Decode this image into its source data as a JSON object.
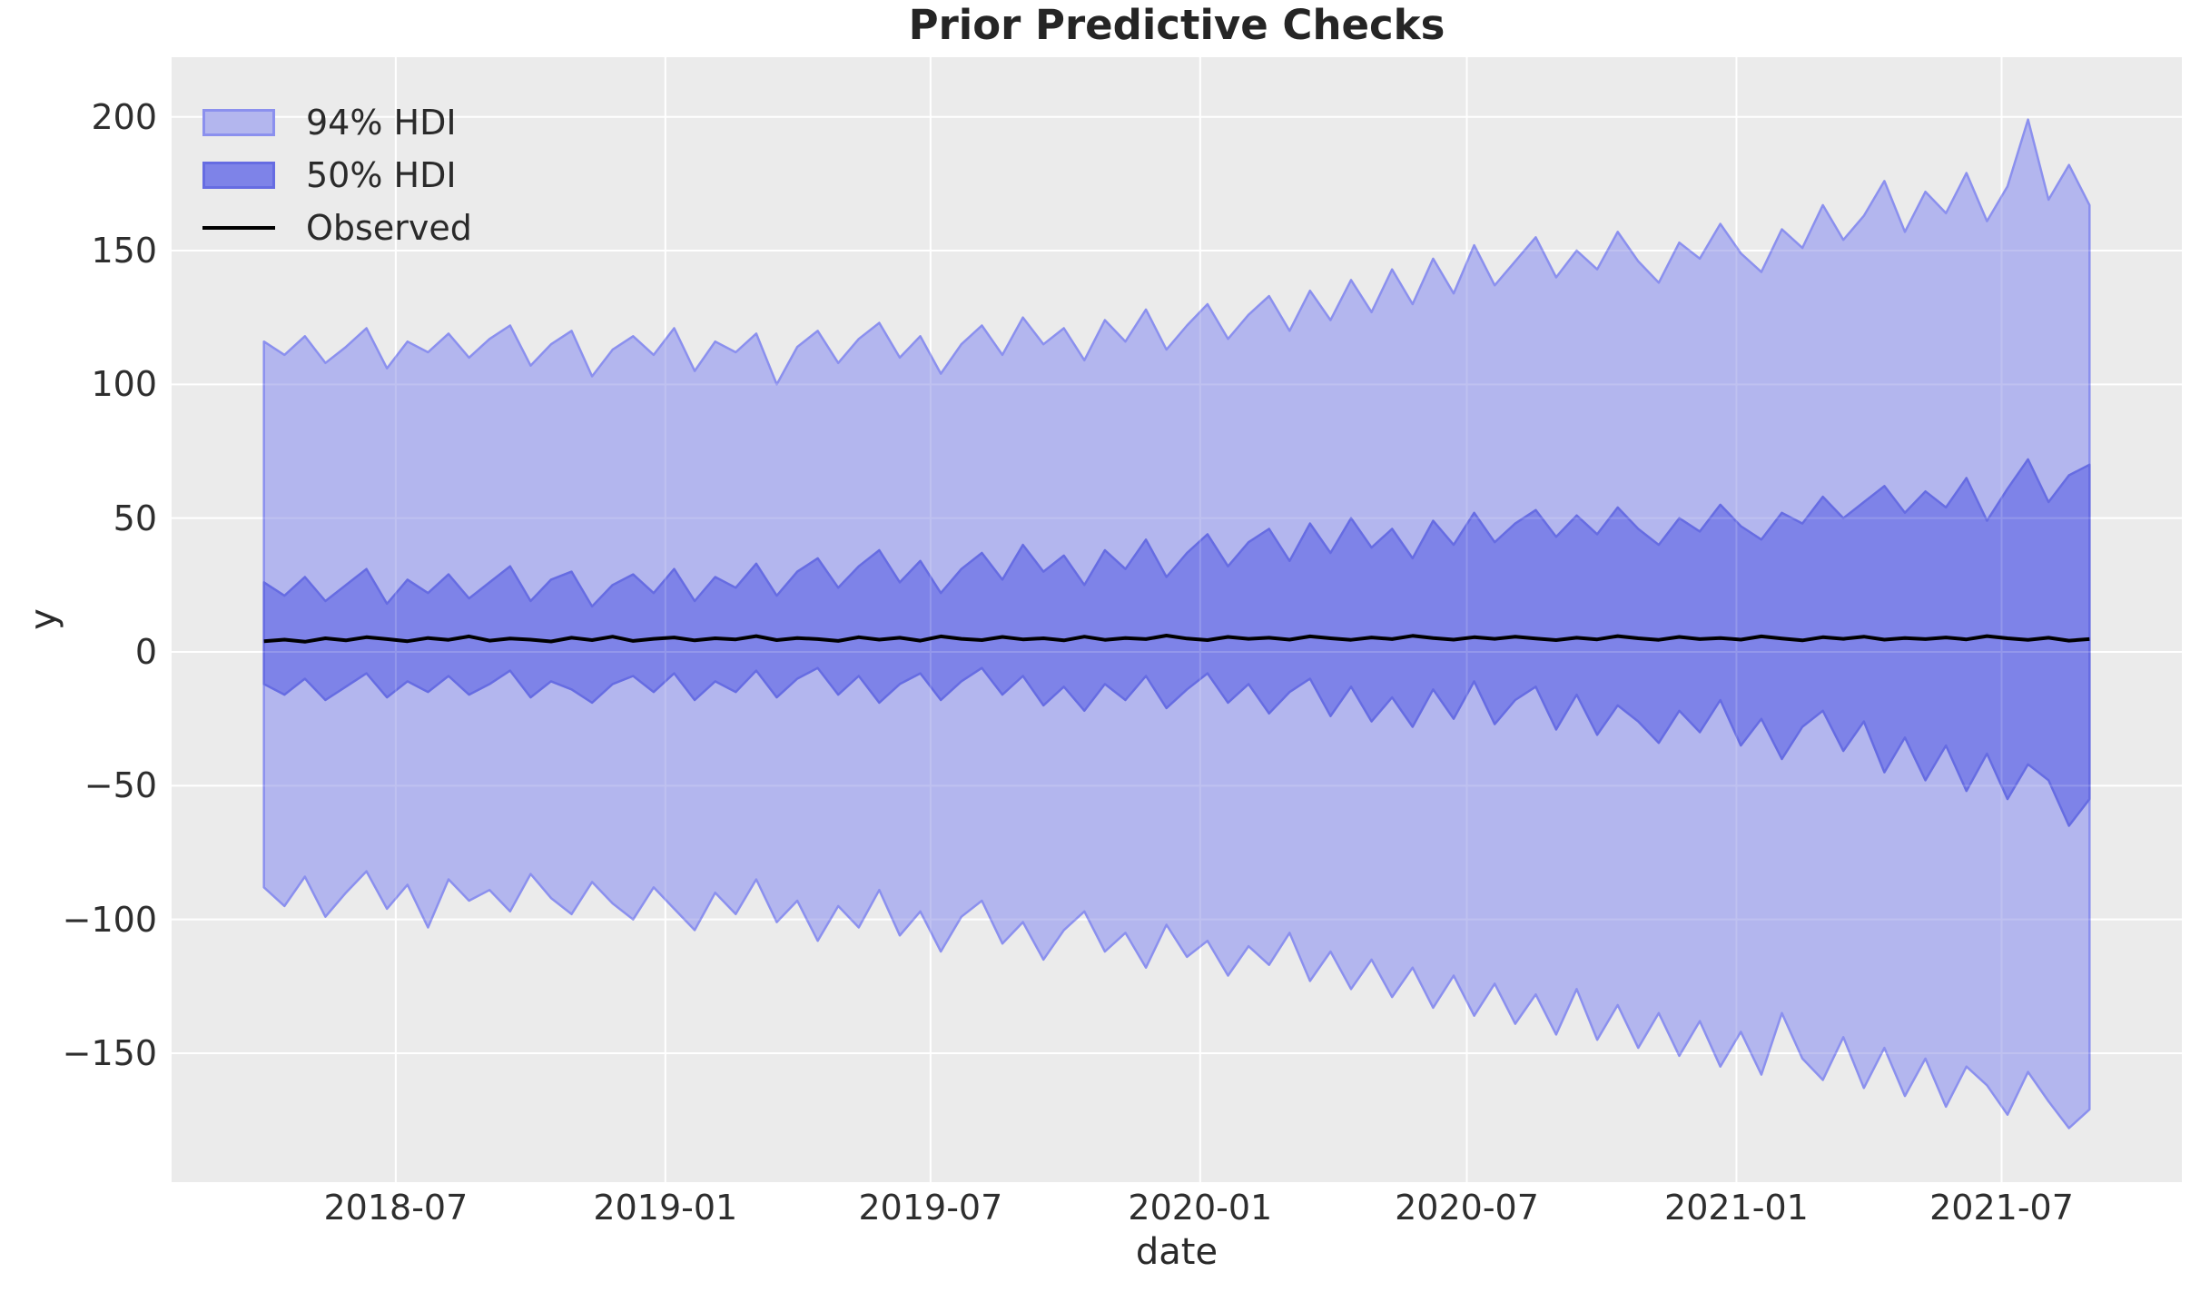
{
  "figure": {
    "title": "Prior Predictive Checks"
  },
  "legend": {
    "items": [
      {
        "label": "94% HDI",
        "type": "patch",
        "fill": "#b3b6ee",
        "edge": "#8b90ee"
      },
      {
        "label": "50% HDI",
        "type": "patch",
        "fill": "#7e83e8",
        "edge": "#666ce2"
      },
      {
        "label": "Observed",
        "type": "line",
        "color": "#000000"
      }
    ]
  },
  "colors": {
    "figure_bg": "#ffffff",
    "axes_bg": "#ebebeb",
    "grid": "#ffffff",
    "hdi94_fill": "#b3b6ee",
    "hdi94_edge": "#8b90ee",
    "hdi50_fill": "#7e83e8",
    "hdi50_edge": "#666ce2",
    "observed": "#000000",
    "text": "#2a2a2a"
  },
  "chart_data": {
    "type": "area",
    "title": "Prior Predictive Checks",
    "xlabel": "date",
    "ylabel": "y",
    "grid": true,
    "legend_position": "upper left",
    "x_start": "2018-04-02",
    "x_step_days": 14,
    "n_points": 90,
    "xlim": [
      "2018-01-29",
      "2021-11-01"
    ],
    "ylim": [
      -198.2,
      222.3
    ],
    "x_ticks": [
      {
        "date": "2018-07-01",
        "label": "2018-07"
      },
      {
        "date": "2019-01-01",
        "label": "2019-01"
      },
      {
        "date": "2019-07-01",
        "label": "2019-07"
      },
      {
        "date": "2020-01-01",
        "label": "2020-01"
      },
      {
        "date": "2020-07-01",
        "label": "2020-07"
      },
      {
        "date": "2021-01-01",
        "label": "2021-01"
      },
      {
        "date": "2021-07-01",
        "label": "2021-07"
      }
    ],
    "y_ticks": [
      {
        "value": 200,
        "label": "200"
      },
      {
        "value": 150,
        "label": "150"
      },
      {
        "value": 100,
        "label": "100"
      },
      {
        "value": 50,
        "label": "50"
      },
      {
        "value": 0,
        "label": "0"
      },
      {
        "value": -50,
        "label": "−50"
      },
      {
        "value": -100,
        "label": "−100"
      },
      {
        "value": -150,
        "label": "−150"
      }
    ],
    "series": [
      {
        "name": "94% HDI upper",
        "values": [
          116,
          111,
          118,
          108,
          114,
          121,
          106,
          116,
          112,
          119,
          110,
          117,
          122,
          107,
          115,
          120,
          103,
          113,
          118,
          111,
          121,
          105,
          116,
          112,
          119,
          100,
          114,
          120,
          108,
          117,
          123,
          110,
          118,
          104,
          115,
          122,
          111,
          125,
          115,
          121,
          109,
          124,
          116,
          128,
          113,
          122,
          130,
          117,
          126,
          133,
          120,
          135,
          124,
          139,
          127,
          143,
          130,
          147,
          134,
          152,
          137,
          146,
          155,
          140,
          150,
          143,
          157,
          146,
          138,
          153,
          147,
          160,
          149,
          142,
          158,
          151,
          167,
          154,
          163,
          176,
          157,
          172,
          164,
          179,
          161,
          174,
          199,
          169,
          182,
          167
        ]
      },
      {
        "name": "50% HDI upper",
        "values": [
          26,
          21,
          28,
          19,
          25,
          31,
          18,
          27,
          22,
          29,
          20,
          26,
          32,
          19,
          27,
          30,
          17,
          25,
          29,
          22,
          31,
          19,
          28,
          24,
          33,
          21,
          30,
          35,
          24,
          32,
          38,
          26,
          34,
          22,
          31,
          37,
          27,
          40,
          30,
          36,
          25,
          38,
          31,
          42,
          28,
          37,
          44,
          32,
          41,
          46,
          34,
          48,
          37,
          50,
          39,
          46,
          35,
          49,
          40,
          52,
          41,
          48,
          53,
          43,
          51,
          44,
          54,
          46,
          40,
          50,
          45,
          55,
          47,
          42,
          52,
          48,
          58,
          50,
          56,
          62,
          52,
          60,
          54,
          65,
          49,
          61,
          72,
          56,
          66,
          70
        ]
      },
      {
        "name": "Observed",
        "values": [
          4.0,
          4.6,
          3.8,
          5.1,
          4.3,
          5.5,
          4.8,
          4.0,
          5.2,
          4.5,
          5.8,
          4.2,
          5.0,
          4.6,
          3.9,
          5.3,
          4.4,
          5.7,
          4.1,
          4.9,
          5.4,
          4.3,
          5.1,
          4.7,
          5.9,
          4.4,
          5.2,
          4.8,
          4.1,
          5.5,
          4.6,
          5.3,
          4.2,
          5.8,
          4.9,
          4.4,
          5.6,
          4.7,
          5.1,
          4.3,
          5.7,
          4.5,
          5.2,
          4.8,
          6.1,
          5.0,
          4.4,
          5.6,
          4.9,
          5.3,
          4.6,
          5.8,
          5.1,
          4.5,
          5.4,
          4.8,
          6.0,
          5.2,
          4.6,
          5.5,
          4.9,
          5.7,
          5.0,
          4.4,
          5.3,
          4.7,
          5.9,
          5.1,
          4.5,
          5.6,
          4.8,
          5.2,
          4.6,
          5.8,
          5.0,
          4.3,
          5.5,
          4.9,
          5.7,
          4.6,
          5.2,
          4.8,
          5.4,
          4.7,
          5.9,
          5.1,
          4.5,
          5.3,
          4.2,
          4.8
        ]
      },
      {
        "name": "50% HDI lower",
        "values": [
          -12,
          -16,
          -10,
          -18,
          -13,
          -8,
          -17,
          -11,
          -15,
          -9,
          -16,
          -12,
          -7,
          -17,
          -11,
          -14,
          -19,
          -12,
          -9,
          -15,
          -8,
          -18,
          -11,
          -15,
          -7,
          -17,
          -10,
          -6,
          -16,
          -9,
          -19,
          -12,
          -8,
          -18,
          -11,
          -6,
          -16,
          -9,
          -20,
          -13,
          -22,
          -12,
          -18,
          -9,
          -21,
          -14,
          -8,
          -19,
          -12,
          -23,
          -15,
          -10,
          -24,
          -13,
          -26,
          -17,
          -28,
          -14,
          -25,
          -11,
          -27,
          -18,
          -13,
          -29,
          -16,
          -31,
          -20,
          -26,
          -34,
          -22,
          -30,
          -18,
          -35,
          -25,
          -40,
          -28,
          -22,
          -37,
          -26,
          -45,
          -32,
          -48,
          -35,
          -52,
          -38,
          -55,
          -42,
          -48,
          -65,
          -55
        ]
      },
      {
        "name": "94% HDI lower",
        "values": [
          -88,
          -95,
          -84,
          -99,
          -90,
          -82,
          -96,
          -87,
          -103,
          -85,
          -93,
          -89,
          -97,
          -83,
          -92,
          -98,
          -86,
          -94,
          -100,
          -88,
          -96,
          -104,
          -90,
          -98,
          -85,
          -101,
          -93,
          -108,
          -95,
          -103,
          -89,
          -106,
          -97,
          -112,
          -99,
          -93,
          -109,
          -101,
          -115,
          -104,
          -97,
          -112,
          -105,
          -118,
          -102,
          -114,
          -108,
          -121,
          -110,
          -117,
          -105,
          -123,
          -112,
          -126,
          -115,
          -129,
          -118,
          -133,
          -121,
          -136,
          -124,
          -139,
          -128,
          -143,
          -126,
          -145,
          -132,
          -148,
          -135,
          -151,
          -138,
          -155,
          -142,
          -158,
          -135,
          -152,
          -160,
          -144,
          -163,
          -148,
          -166,
          -152,
          -170,
          -155,
          -162,
          -173,
          -157,
          -168,
          -178,
          -171
        ]
      }
    ]
  }
}
